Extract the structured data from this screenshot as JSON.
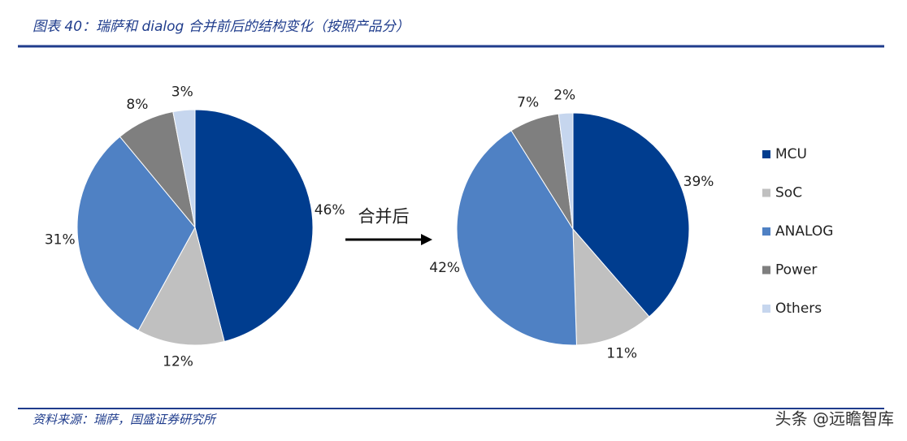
{
  "title": "图表 40：瑞萨和 dialog 合并前后的结构变化（按照产品分）",
  "chart_data": [
    {
      "type": "pie",
      "categories": [
        "MCU",
        "SoC",
        "ANALOG",
        "Power",
        "Others"
      ],
      "values": [
        46,
        12,
        31,
        8,
        3
      ],
      "value_labels": [
        "46%",
        "12%",
        "31%",
        "8%",
        "3%"
      ],
      "colors": [
        "#003d8f",
        "#c0c0c0",
        "#4f81c4",
        "#7f7f7f",
        "#c6d6ee"
      ]
    },
    {
      "type": "pie",
      "categories": [
        "MCU",
        "SoC",
        "ANALOG",
        "Power",
        "Others"
      ],
      "values": [
        39,
        11,
        42,
        7,
        2
      ],
      "value_labels": [
        "39%",
        "11%",
        "42%",
        "7%",
        "2%"
      ],
      "colors": [
        "#003d8f",
        "#c0c0c0",
        "#4f81c4",
        "#7f7f7f",
        "#c6d6ee"
      ]
    }
  ],
  "annotation": "合并后",
  "source": "资料来源：瑞萨，国盛证券研究所",
  "watermark": "头条 @远瞻智库"
}
